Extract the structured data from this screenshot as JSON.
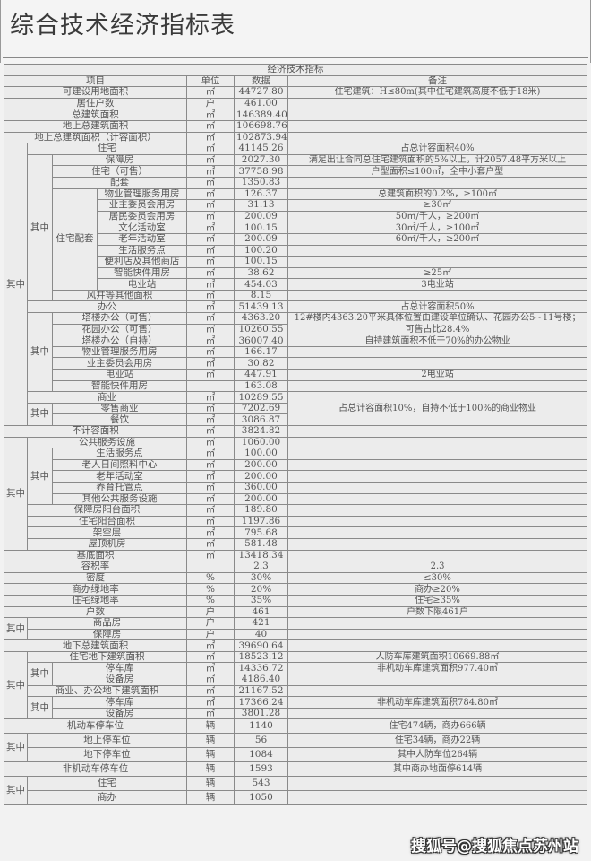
{
  "title": "综合技术经济指标表",
  "table": {
    "caption": "经济技术指标",
    "headers": {
      "item": "项目",
      "unit": "单位",
      "value": "数据",
      "note": "备注"
    },
    "qizhong_label": "其中",
    "residential_support_label": "住宅配套",
    "rows": [
      {
        "item": "可建设用地面积",
        "unit": "㎡",
        "value": "44727.80",
        "note": "住宅建筑：H≤80m(其中住宅建筑高度不低于18米)"
      },
      {
        "item": "居住户数",
        "unit": "户",
        "value": "461.00",
        "note": ""
      },
      {
        "item": "总建筑面积",
        "unit": "㎡",
        "value": "146389.40",
        "note": ""
      },
      {
        "item": "地上总建筑面积",
        "unit": "㎡",
        "value": "106698.76",
        "note": ""
      },
      {
        "item": "地上总建筑面积（计容面积）",
        "unit": "㎡",
        "value": "102873.94",
        "note": ""
      },
      {
        "item": "住宅",
        "unit": "㎡",
        "value": "41145.26",
        "note": "占总计容面积40%"
      },
      {
        "item": "保障房",
        "unit": "㎡",
        "value": "2027.30",
        "note": "满足出让合同总住宅建筑面积的5%以上，计2057.48平方米以上"
      },
      {
        "item": "住宅（可售）",
        "unit": "㎡",
        "value": "37758.98",
        "note": "户型面积≤100㎡，全中小套户型"
      },
      {
        "item": "配套",
        "unit": "㎡",
        "value": "1350.83",
        "note": ""
      },
      {
        "item": "物业管理服务用房",
        "unit": "㎡",
        "value": "126.37",
        "note": "总建筑面积的0.2%，≥100㎡"
      },
      {
        "item": "业主委员会用房",
        "unit": "㎡",
        "value": "31.13",
        "note": "≥30㎡"
      },
      {
        "item": "居民委员会用房",
        "unit": "㎡",
        "value": "200.09",
        "note": "50㎡/千人，≥200㎡"
      },
      {
        "item": "文化活动室",
        "unit": "㎡",
        "value": "100.15",
        "note": "30㎡/千人，≥100㎡"
      },
      {
        "item": "老年活动室",
        "unit": "㎡",
        "value": "200.09",
        "note": "60㎡/千人，≥200㎡"
      },
      {
        "item": "生活服务点",
        "unit": "㎡",
        "value": "100.20",
        "note": ""
      },
      {
        "item": "便利店及其他商店",
        "unit": "㎡",
        "value": "100.15",
        "note": ""
      },
      {
        "item": "智能快件用房",
        "unit": "㎡",
        "value": "38.62",
        "note": "≥25㎡"
      },
      {
        "item": "电业站",
        "unit": "㎡",
        "value": "454.03",
        "note": "3电业站"
      },
      {
        "item": "风井等其他面积",
        "unit": "㎡",
        "value": "8.15",
        "note": ""
      },
      {
        "item": "办公",
        "unit": "㎡",
        "value": "51439.13",
        "note": "占总计容面积50%"
      },
      {
        "item": "塔楼办公（可售）",
        "unit": "㎡",
        "value": "4363.20",
        "note": "12#楼内4363.20平米具体位置由建设单位确认、花园办公5~11号楼；",
        "note2": "可售占比28.4%"
      },
      {
        "item": "花园办公（可售）",
        "unit": "㎡",
        "value": "10260.55",
        "note": ""
      },
      {
        "item": "塔楼办公（自持）",
        "unit": "㎡",
        "value": "36007.40",
        "note": "自持建筑面积不低于70%的办公物业"
      },
      {
        "item": "物业管理服务用房",
        "unit": "㎡",
        "value": "166.17",
        "note": ""
      },
      {
        "item": "业主委员会用房",
        "unit": "㎡",
        "value": "30.82",
        "note": ""
      },
      {
        "item": "电业站",
        "unit": "㎡",
        "value": "447.91",
        "note": "2电业站"
      },
      {
        "item": "智能快件用房",
        "unit": "",
        "value": "163.08",
        "note": ""
      },
      {
        "item": "商业",
        "unit": "㎡",
        "value": "10289.55",
        "note": "占总计容面积10%，自持不低于100%的商业物业"
      },
      {
        "item": "零售商业",
        "unit": "㎡",
        "value": "7202.69",
        "note": ""
      },
      {
        "item": "餐饮",
        "unit": "㎡",
        "value": "3086.87",
        "note": ""
      },
      {
        "item": "不计容面积",
        "unit": "㎡",
        "value": "3824.82",
        "note": ""
      },
      {
        "item": "公共服务设施",
        "unit": "㎡",
        "value": "1060.00",
        "note": ""
      },
      {
        "item": "生活服务点",
        "unit": "㎡",
        "value": "100.00",
        "note": ""
      },
      {
        "item": "老人日间照料中心",
        "unit": "㎡",
        "value": "200.00",
        "note": ""
      },
      {
        "item": "老年活动室",
        "unit": "㎡",
        "value": "200.00",
        "note": ""
      },
      {
        "item": "养育托管点",
        "unit": "㎡",
        "value": "360.00",
        "note": ""
      },
      {
        "item": "其他公共服务设施",
        "unit": "㎡",
        "value": "200.00",
        "note": ""
      },
      {
        "item": "保障房阳台面积",
        "unit": "㎡",
        "value": "189.80",
        "note": ""
      },
      {
        "item": "住宅阳台面积",
        "unit": "㎡",
        "value": "1197.86",
        "note": ""
      },
      {
        "item": "架空层",
        "unit": "㎡",
        "value": "795.68",
        "note": ""
      },
      {
        "item": "屋顶机房",
        "unit": "㎡",
        "value": "581.48",
        "note": ""
      },
      {
        "item": "基底面积",
        "unit": "㎡",
        "value": "13418.34",
        "note": ""
      },
      {
        "item": "容积率",
        "unit": "",
        "value": "2.3",
        "note": "2.3"
      },
      {
        "item": "密度",
        "unit": "%",
        "value": "30%",
        "note": "≤30%"
      },
      {
        "item": "商办绿地率",
        "unit": "%",
        "value": "20%",
        "note": "商办≥20%"
      },
      {
        "item": "住宅绿地率",
        "unit": "%",
        "value": "35%",
        "note": "住宅≥35%"
      },
      {
        "item": "户数",
        "unit": "户",
        "value": "461",
        "note": "户数下限461户"
      },
      {
        "item": "商品房",
        "unit": "户",
        "value": "421",
        "note": ""
      },
      {
        "item": "保障房",
        "unit": "户",
        "value": "40",
        "note": ""
      },
      {
        "item": "地下总建筑面积",
        "unit": "㎡",
        "value": "39690.64",
        "note": ""
      },
      {
        "item": "住宅地下建筑面积",
        "unit": "㎡",
        "value": "18523.12",
        "note": "人防车库建筑面积10669.88㎡"
      },
      {
        "item": "停车库",
        "unit": "㎡",
        "value": "14336.72",
        "note": "非机动车库建筑面积977.40㎡"
      },
      {
        "item": "设备房",
        "unit": "㎡",
        "value": "4186.40",
        "note": ""
      },
      {
        "item": "商业、办公地下建筑面积",
        "unit": "㎡",
        "value": "21167.52",
        "note": ""
      },
      {
        "item": "停车库",
        "unit": "㎡",
        "value": "17366.24",
        "note": "非机动车库建筑面积784.80㎡"
      },
      {
        "item": "设备房",
        "unit": "㎡",
        "value": "3801.28",
        "note": ""
      },
      {
        "item": "机动车停车位",
        "unit": "辆",
        "value": "1140",
        "note": "住宅474辆，商办666辆"
      },
      {
        "item": "地上停车位",
        "unit": "辆",
        "value": "56",
        "note": "住宅34辆，商办22辆"
      },
      {
        "item": "地下停车位",
        "unit": "辆",
        "value": "1084",
        "note": "其中人防车位264辆"
      },
      {
        "item": "非机动车停车位",
        "unit": "辆",
        "value": "1593",
        "note": "其中商办地面停614辆"
      },
      {
        "item": "住宅",
        "unit": "辆",
        "value": "543",
        "note": ""
      },
      {
        "item": "商办",
        "unit": "辆",
        "value": "1050",
        "note": ""
      }
    ]
  },
  "watermark": "搜狐号@搜狐焦点苏州站"
}
